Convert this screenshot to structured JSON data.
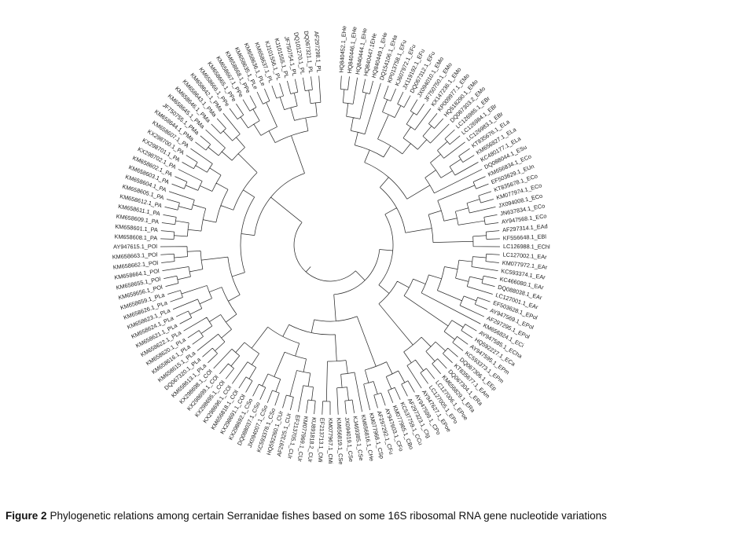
{
  "figure": {
    "caption_label": "Figure 2",
    "caption_text": "Phylogenetic relations among certain Serranidae fishes based on some 16S ribosomal RNA gene nucleotide variations"
  },
  "colors": {
    "branch_line": "#2b2b2b",
    "label_text": "#1a1a1a",
    "background": "#ffffff"
  },
  "tree": {
    "type": "circular-phylogram-fan",
    "leaf_count": 131,
    "leaves_clockwise_from_top": [
      "HQ840452.1_EHe",
      "HQ840446.1_EHe",
      "HQ840444.1_EHe",
      "HQ840447.1EHe",
      "HQ840449.1_EHe",
      "DQ154106.1_EHa",
      "KP013758.1_EFu",
      "KJ607972.1_EFu",
      "JX119192.1_EFu",
      "DQ067312.1_EFu",
      "JX094010.1_EMo",
      "JF750750.1_EMo",
      "KX147236.1_EMo",
      "KP009977.1_EMo",
      "HQ518290.1_EMo",
      "DQ067303.2_EMo",
      "LC126985.1_EBr",
      "LC126984.1_EBr",
      "LC126983.1_EBr",
      "KT835676.1_ELa",
      "KM656827.1_ELa",
      "KC480177.1_ELa",
      "DQ088044.1_ESu",
      "KM656834.1_ECo",
      "EF503629.1_EUn",
      "KT835678.1_ECo",
      "KM077974.1_ECo",
      "JX094008.1_ECo",
      "JN637834.1_ECo",
      "AY947568.1_ECo",
      "AF297314.1_EAd",
      "KF556648.1_EBl",
      "LC126988.1_EChl",
      "LC127002.1_EAr",
      "KM077972.1_EAr",
      "KC593374.1_EAr",
      "KC466080.1_EAr",
      "DQ088038.1_EAr",
      "LC127001.1_EAr",
      "EF503628.1_EPol",
      "AY947569.1_EPol",
      "AF297295.1_EPol",
      "KM656824.1_ECi",
      "AY947585.1_ECha",
      "HQ592227.1_ECa",
      "AY947595.1_EPm",
      "KC593373.1_EPm",
      "DQ067306.1_EEp",
      "KT835677.1_EAm",
      "DQ067304.1_ERa",
      "KM656829.1_ERa",
      "LC127006.1_EPoe",
      "LC127005.1_EPo",
      "AY947627.1_EPoe",
      "AY947599.1_CPo",
      "AF297323.1_CIg",
      "KC537759.1_CCu",
      "KM077965.1_CBo",
      "AY947603.1_CFo",
      "AF297292.1_CFu",
      "KM077968.1_CSp",
      "KM656816.1_CHe",
      "KJ469385.1_CSe",
      "JX094019.1_CSe",
      "KM656819.1_CSe",
      "KM077967.1_CMi",
      "EF213713.1_CMi",
      "KU891818.2_CUr",
      "KM077969.1_CUr",
      "EF213705.1_CUr",
      "AF297325.1_CUr",
      "HQ592260.1_CUr",
      "KC593378.1_CSo",
      "JX094007.1_CSo",
      "DQ088037.1_CSo",
      "KX298692.1_CSo",
      "KX298691.1_COl",
      "KM656818.1_COl",
      "KX298696.1_COl",
      "KX298695.1_COl",
      "KX298699.1_COl",
      "KX298698.1_COl",
      "KM658613.1_PLa",
      "DQ067320.1_PLa",
      "KM658615.1_PLa",
      "KM658616.1_PLa",
      "KM658620.1_PLa",
      "KM658622.1_PLa",
      "KM658621.1_PLa",
      "KM658624.1_PLa",
      "KM658623.1_PLa",
      "KM658626.1_PLa",
      "KM658659.1_PLa",
      "KM658656.1_POl",
      "KM658655.1_POl",
      "KM658664.1_POl",
      "KM658662.1_POl",
      "KM658663.1_POl",
      "AY947615.1_POl",
      "KM658608.1_PA",
      "KM658601.1_PA",
      "KM658609.1_PA",
      "KM658611.1_PA",
      "KM658612.1_PA",
      "KM658605.1_PA",
      "KM658604.1_PA",
      "KM658603.1_PA",
      "KM658602.1_PA",
      "KX298702.1_PA",
      "KX298701.1_PA",
      "KX298700.1_PA",
      "KM658607.1_PA",
      "KM658644.1_PMa",
      "JF750755.1_PMa",
      "KM658645.1_PMa",
      "KM658646.1_PMa",
      "KM658643.1_PMa",
      "KM658642.1_PMa",
      "KM658666.1_PPe",
      "KM658665.1_PPe",
      "KM658667.1_PPe",
      "KM658668.1_PPe",
      "KM658635.1_PLe",
      "KM658636.1_PLe",
      "KM658637.1_PL",
      "KJ101556.1_PL",
      "KJ101555.1_PL",
      "JF750754.1_PL",
      "DQ101270.1_PL",
      "DQ067321.1_PL",
      "AF297298.1_PL"
    ]
  }
}
